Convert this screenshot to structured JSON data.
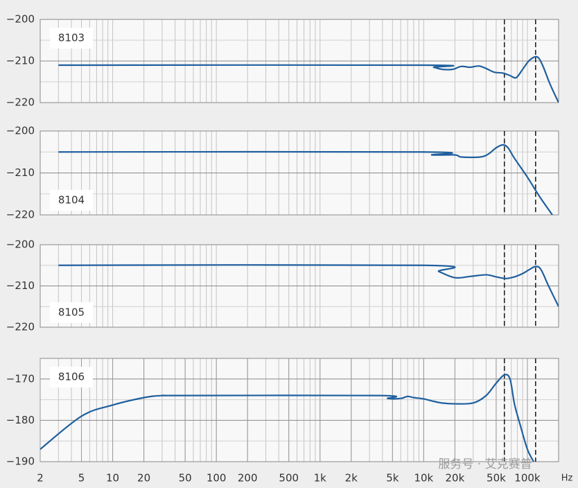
{
  "chart_data": [
    {
      "type": "line",
      "title": "8103",
      "label_position": "top-left",
      "color": "#1f5f9e",
      "x": [
        3,
        10000,
        12500,
        15000,
        19000,
        23000,
        28000,
        34000,
        40000,
        48000,
        58000,
        68000,
        78000,
        90000,
        105000,
        124000,
        140000,
        165000,
        200000
      ],
      "values": [
        -211,
        -211,
        -211.5,
        -212,
        -212,
        -211.3,
        -211.5,
        -211.2,
        -211.8,
        -212.7,
        -212.9,
        -213.5,
        -214,
        -212,
        -209.8,
        -209,
        -211,
        -215.5,
        -220
      ],
      "xlim": [
        2,
        200000
      ],
      "ylim": [
        -220,
        -200
      ],
      "yticks": [
        {
          "value": -200,
          "label": "−200"
        },
        {
          "value": -210,
          "label": "−210"
        },
        {
          "value": -220,
          "label": "−220"
        }
      ],
      "ygrid": [
        -215,
        -205
      ],
      "xgrid": [
        3,
        4,
        5,
        6,
        7,
        8,
        9,
        10,
        20,
        30,
        40,
        50,
        60,
        70,
        80,
        90,
        100,
        200,
        300,
        400,
        500,
        600,
        700,
        800,
        900,
        1000,
        2000,
        3000,
        4000,
        5000,
        6000,
        7000,
        8000,
        9000,
        10000,
        20000,
        30000,
        40000,
        50000,
        60000,
        70000,
        80000,
        90000,
        100000
      ],
      "vlines": [
        60000,
        120000
      ]
    },
    {
      "type": "line",
      "title": "8104",
      "label_position": "bottom-left",
      "color": "#1f5f9e",
      "x": [
        3,
        10000,
        12000,
        20000,
        23000,
        35000,
        42000,
        50000,
        58000,
        65000,
        75000,
        100000,
        130000,
        174000
      ],
      "values": [
        -205,
        -205,
        -205.7,
        -205.7,
        -206.2,
        -206.2,
        -205.5,
        -204,
        -203.3,
        -204,
        -206.5,
        -211,
        -215.5,
        -220
      ],
      "xlim": [
        2,
        200000
      ],
      "ylim": [
        -220,
        -200
      ],
      "yticks": [
        {
          "value": -200,
          "label": "−200"
        },
        {
          "value": -210,
          "label": "−210"
        },
        {
          "value": -220,
          "label": "−220"
        }
      ],
      "ygrid": [
        -215,
        -205
      ],
      "xgrid": [
        3,
        4,
        5,
        6,
        7,
        8,
        9,
        10,
        20,
        30,
        40,
        50,
        60,
        70,
        80,
        90,
        100,
        200,
        300,
        400,
        500,
        600,
        700,
        800,
        900,
        1000,
        2000,
        3000,
        4000,
        5000,
        6000,
        7000,
        8000,
        9000,
        10000,
        20000,
        30000,
        40000,
        50000,
        60000,
        70000,
        80000,
        90000,
        100000
      ],
      "vlines": [
        60000,
        120000
      ]
    },
    {
      "type": "line",
      "title": "8105",
      "label_position": "bottom-left",
      "color": "#1f5f9e",
      "x": [
        3,
        10000,
        14000,
        20000,
        28000,
        40000,
        50000,
        62000,
        75000,
        90000,
        105000,
        120000,
        135000,
        160000,
        200000
      ],
      "values": [
        -205,
        -205,
        -206.5,
        -208,
        -207.7,
        -207.3,
        -207.8,
        -208.2,
        -207.8,
        -207,
        -206,
        -205.3,
        -206,
        -210,
        -215
      ],
      "xlim": [
        2,
        200000
      ],
      "ylim": [
        -220,
        -200
      ],
      "yticks": [
        {
          "value": -200,
          "label": "−200"
        },
        {
          "value": -210,
          "label": "−210"
        },
        {
          "value": -220,
          "label": "−220"
        }
      ],
      "ygrid": [
        -215,
        -205
      ],
      "xgrid": [
        3,
        4,
        5,
        6,
        7,
        8,
        9,
        10,
        20,
        30,
        40,
        50,
        60,
        70,
        80,
        90,
        100,
        200,
        300,
        400,
        500,
        600,
        700,
        800,
        900,
        1000,
        2000,
        3000,
        4000,
        5000,
        6000,
        7000,
        8000,
        9000,
        10000,
        20000,
        30000,
        40000,
        50000,
        60000,
        70000,
        80000,
        90000,
        100000
      ],
      "vlines": [
        60000,
        120000
      ]
    },
    {
      "type": "line",
      "title": "8106",
      "label_position": "top-left",
      "color": "#1f5f9e",
      "x": [
        2,
        5,
        10,
        20,
        30,
        50,
        3800,
        4500,
        6000,
        7000,
        8000,
        10000,
        12000,
        15000,
        20000,
        30000,
        40000,
        50000,
        60000,
        68000,
        75000,
        85000,
        100000,
        115000
      ],
      "values": [
        -187,
        -179,
        -176.3,
        -174.5,
        -174,
        -174,
        -174,
        -174.7,
        -174.7,
        -174.2,
        -174.5,
        -174.8,
        -175.3,
        -175.8,
        -176,
        -175.8,
        -174,
        -171,
        -169,
        -170,
        -176,
        -181,
        -187,
        -190
      ],
      "xlim": [
        2,
        200000
      ],
      "ylim": [
        -190,
        -165
      ],
      "yticks": [
        {
          "value": -170,
          "label": "−170"
        },
        {
          "value": -180,
          "label": "−180"
        },
        {
          "value": -190,
          "label": "−190"
        }
      ],
      "ygrid": [
        -185,
        -175
      ],
      "xgrid": [
        3,
        4,
        5,
        6,
        7,
        8,
        9,
        10,
        20,
        30,
        40,
        50,
        60,
        70,
        80,
        90,
        100,
        200,
        300,
        400,
        500,
        600,
        700,
        800,
        900,
        1000,
        2000,
        3000,
        4000,
        5000,
        6000,
        7000,
        8000,
        9000,
        10000,
        20000,
        30000,
        40000,
        50000,
        60000,
        70000,
        80000,
        90000,
        100000
      ],
      "xticks": [
        2,
        5,
        10,
        20,
        50,
        100,
        200,
        500,
        {
          "value": 1000,
          "label": "1k"
        },
        {
          "value": 2000,
          "label": "2k"
        },
        {
          "value": 5000,
          "label": "5k"
        },
        {
          "value": 10000,
          "label": "10k"
        },
        {
          "value": 20000,
          "label": "20k"
        },
        {
          "value": 50000,
          "label": "50k"
        },
        {
          "value": 100000,
          "label": "100k"
        }
      ],
      "x_unit": "Hz",
      "vlines": [
        60000,
        120000
      ]
    }
  ],
  "watermark": "服务号 · 艾克赛普"
}
